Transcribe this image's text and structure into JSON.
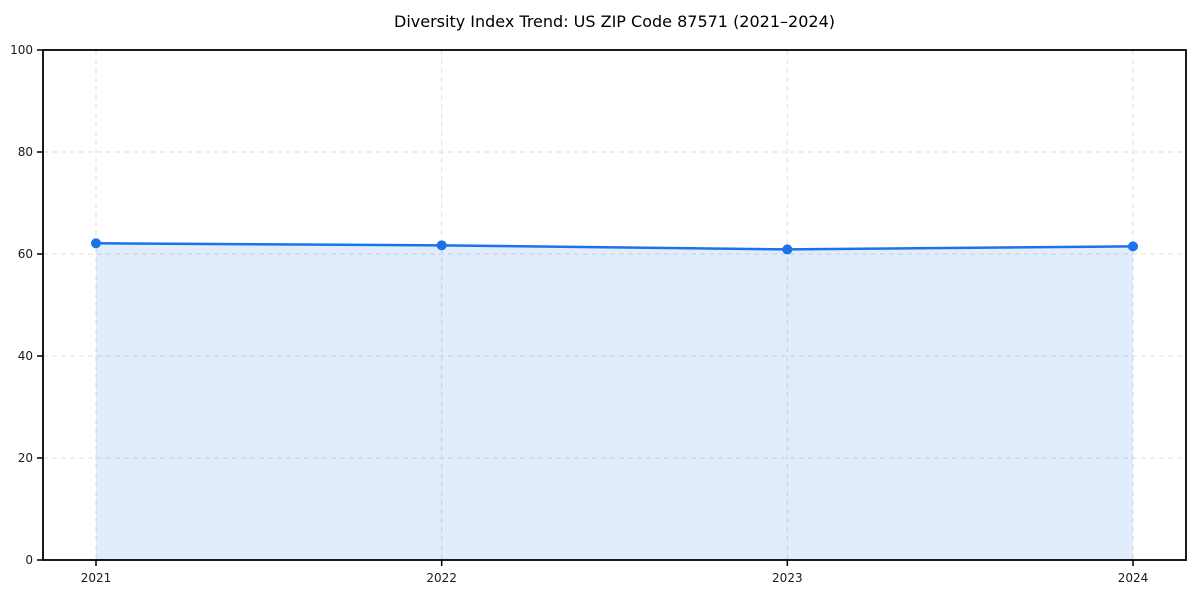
{
  "page": {
    "background": "#ffffff"
  },
  "chart_data": {
    "type": "area",
    "title": "Diversity Index Trend: US ZIP Code 87571 (2021–2024)",
    "categories": [
      "2021",
      "2022",
      "2023",
      "2024"
    ],
    "series": [
      {
        "name": "Diversity Index",
        "values": [
          62.1,
          61.7,
          60.9,
          61.5
        ]
      }
    ],
    "xlabel": "",
    "ylabel": "",
    "ylim": [
      0,
      100
    ],
    "yticks": [
      0,
      20,
      40,
      60,
      80,
      100
    ],
    "grid": {
      "visible": true,
      "style": "dashed",
      "axes": "both"
    },
    "legend": {
      "visible": false
    },
    "colors": {
      "line": "#1a73e8",
      "marker": "#1a73e8",
      "fill": "#1a73e8",
      "fill_opacity": 0.13,
      "grid": "#dedede",
      "spine": "#000000",
      "tick_text": "#1a1a1a",
      "title_text": "#000000"
    }
  }
}
